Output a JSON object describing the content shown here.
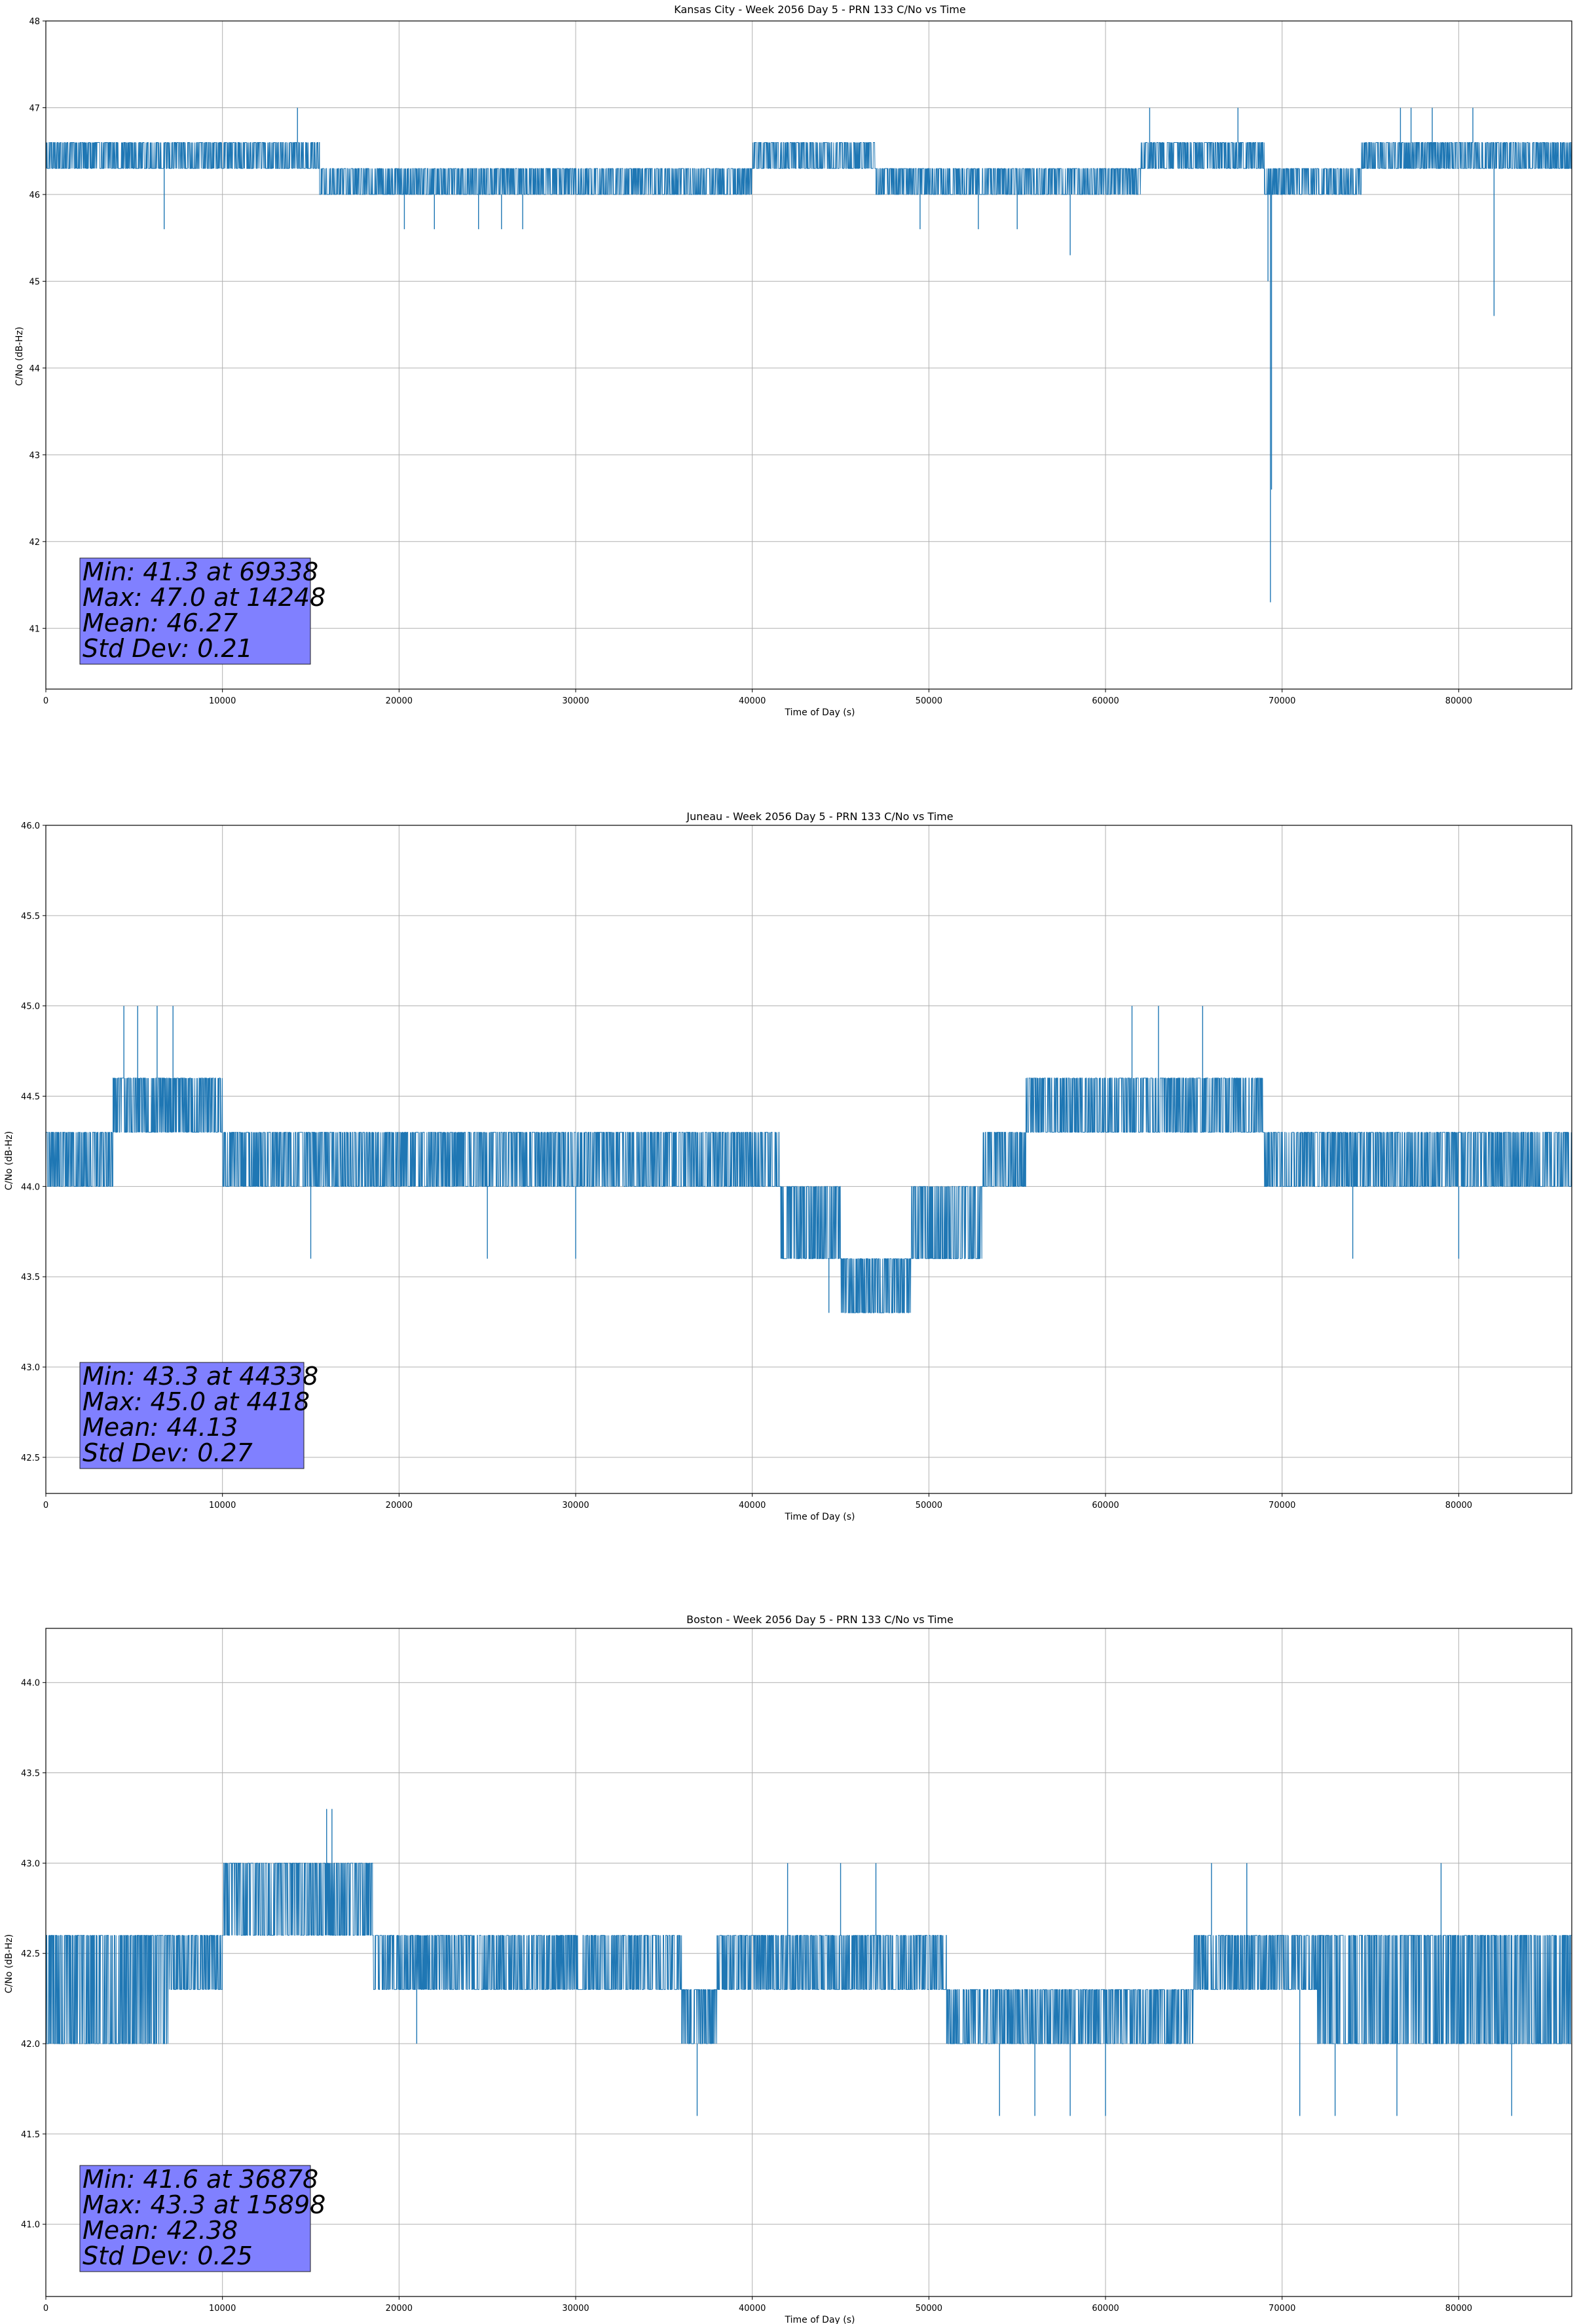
{
  "chart_data": [
    {
      "type": "line",
      "title": "Kansas City - Week 2056 Day 5 - PRN 133 C/No vs Time",
      "xlabel": "Time of Day (s)",
      "ylabel": "C/No (dB-Hz)",
      "xlim": [
        0,
        86400
      ],
      "ylim": [
        40.3,
        48.0
      ],
      "xticks": [
        0,
        10000,
        20000,
        30000,
        40000,
        50000,
        60000,
        70000,
        80000
      ],
      "yticks": [
        41,
        42,
        43,
        44,
        45,
        46,
        47,
        48
      ],
      "ytick_labels": [
        "41",
        "42",
        "43",
        "44",
        "45",
        "46",
        "47",
        "48"
      ],
      "grid": true,
      "color": "#1f77b4",
      "stats_box_color": "#8080ff",
      "segments": [
        {
          "start": 0,
          "end": 15500,
          "low": 46.3,
          "high": 46.6
        },
        {
          "start": 15500,
          "end": 23000,
          "low": 46.0,
          "high": 46.3
        },
        {
          "start": 23000,
          "end": 32000,
          "low": 46.0,
          "high": 46.3
        },
        {
          "start": 32000,
          "end": 40000,
          "low": 46.0,
          "high": 46.3
        },
        {
          "start": 40000,
          "end": 40500,
          "low": 46.3,
          "high": 46.6
        },
        {
          "start": 40500,
          "end": 47000,
          "low": 46.3,
          "high": 46.6
        },
        {
          "start": 47000,
          "end": 62000,
          "low": 46.0,
          "high": 46.3
        },
        {
          "start": 62000,
          "end": 69000,
          "low": 46.3,
          "high": 46.6
        },
        {
          "start": 69000,
          "end": 74500,
          "low": 46.0,
          "high": 46.3
        },
        {
          "start": 74500,
          "end": 86400,
          "low": 46.3,
          "high": 46.6
        }
      ],
      "spikes": [
        {
          "x": 6700,
          "y": 45.6
        },
        {
          "x": 14248,
          "y": 47.0
        },
        {
          "x": 20300,
          "y": 45.6
        },
        {
          "x": 22000,
          "y": 45.6
        },
        {
          "x": 24500,
          "y": 45.6
        },
        {
          "x": 25800,
          "y": 45.6
        },
        {
          "x": 27000,
          "y": 45.6
        },
        {
          "x": 49500,
          "y": 45.6
        },
        {
          "x": 52800,
          "y": 45.6
        },
        {
          "x": 55000,
          "y": 45.6
        },
        {
          "x": 58000,
          "y": 45.3
        },
        {
          "x": 62500,
          "y": 47.0
        },
        {
          "x": 67500,
          "y": 47.0
        },
        {
          "x": 69338,
          "y": 41.3
        },
        {
          "x": 69400,
          "y": 42.6
        },
        {
          "x": 69200,
          "y": 45.0
        },
        {
          "x": 76700,
          "y": 47.0
        },
        {
          "x": 77300,
          "y": 47.0
        },
        {
          "x": 78500,
          "y": 47.0
        },
        {
          "x": 80800,
          "y": 47.0
        },
        {
          "x": 82000,
          "y": 44.6
        }
      ],
      "stats": [
        "Min: 41.3 at 69338",
        "Max: 47.0 at 14248",
        "Mean: 46.27",
        "Std Dev: 0.21"
      ]
    },
    {
      "type": "line",
      "title": "Juneau - Week 2056 Day 5 - PRN 133 C/No vs Time",
      "xlabel": "Time of Day (s)",
      "ylabel": "C/No (dB-Hz)",
      "xlim": [
        0,
        86400
      ],
      "ylim": [
        42.3,
        46.0
      ],
      "xticks": [
        0,
        10000,
        20000,
        30000,
        40000,
        50000,
        60000,
        70000,
        80000
      ],
      "yticks": [
        42.5,
        43.0,
        43.5,
        44.0,
        44.5,
        45.0,
        45.5,
        46.0
      ],
      "ytick_labels": [
        "42.5",
        "43.0",
        "43.5",
        "44.0",
        "44.5",
        "45.0",
        "45.5",
        "46.0"
      ],
      "grid": true,
      "color": "#1f77b4",
      "stats_box_color": "#8080ff",
      "segments": [
        {
          "start": 0,
          "end": 3800,
          "low": 44.0,
          "high": 44.3
        },
        {
          "start": 3800,
          "end": 10000,
          "low": 44.3,
          "high": 44.6
        },
        {
          "start": 10000,
          "end": 41600,
          "low": 44.0,
          "high": 44.3
        },
        {
          "start": 41600,
          "end": 45000,
          "low": 43.6,
          "high": 44.0
        },
        {
          "start": 45000,
          "end": 49000,
          "low": 43.3,
          "high": 43.6
        },
        {
          "start": 49000,
          "end": 53000,
          "low": 43.6,
          "high": 44.0
        },
        {
          "start": 53000,
          "end": 55500,
          "low": 44.0,
          "high": 44.3
        },
        {
          "start": 55500,
          "end": 69000,
          "low": 44.3,
          "high": 44.6
        },
        {
          "start": 69000,
          "end": 86400,
          "low": 44.0,
          "high": 44.3
        }
      ],
      "spikes": [
        {
          "x": 4418,
          "y": 45.0
        },
        {
          "x": 5200,
          "y": 45.0
        },
        {
          "x": 6300,
          "y": 45.0
        },
        {
          "x": 7200,
          "y": 45.0
        },
        {
          "x": 44338,
          "y": 43.3
        },
        {
          "x": 61500,
          "y": 45.0
        },
        {
          "x": 63000,
          "y": 45.0
        },
        {
          "x": 65500,
          "y": 45.0
        },
        {
          "x": 15000,
          "y": 43.6
        },
        {
          "x": 25000,
          "y": 43.6
        },
        {
          "x": 30000,
          "y": 43.6
        },
        {
          "x": 74000,
          "y": 43.6
        },
        {
          "x": 80000,
          "y": 43.6
        }
      ],
      "stats": [
        "Min: 43.3 at 44338",
        "Max: 45.0 at 4418",
        "Mean: 44.13",
        "Std Dev: 0.27"
      ]
    },
    {
      "type": "line",
      "title": "Boston - Week 2056 Day 5 - PRN 133 C/No vs Time",
      "xlabel": "Time of Day (s)",
      "ylabel": "C/No (dB-Hz)",
      "xlim": [
        0,
        86400
      ],
      "ylim": [
        40.6,
        44.3
      ],
      "xticks": [
        0,
        10000,
        20000,
        30000,
        40000,
        50000,
        60000,
        70000,
        80000
      ],
      "yticks": [
        41.0,
        41.5,
        42.0,
        42.5,
        43.0,
        43.5,
        44.0
      ],
      "ytick_labels": [
        "41.0",
        "41.5",
        "42.0",
        "42.5",
        "43.0",
        "43.5",
        "44.0"
      ],
      "grid": true,
      "color": "#1f77b4",
      "stats_box_color": "#8080ff",
      "segments": [
        {
          "start": 0,
          "end": 7000,
          "low": 42.0,
          "high": 42.6
        },
        {
          "start": 7000,
          "end": 10000,
          "low": 42.3,
          "high": 42.6
        },
        {
          "start": 10000,
          "end": 18500,
          "low": 42.6,
          "high": 43.0
        },
        {
          "start": 18500,
          "end": 36000,
          "low": 42.3,
          "high": 42.6
        },
        {
          "start": 36000,
          "end": 38000,
          "low": 42.0,
          "high": 42.3
        },
        {
          "start": 38000,
          "end": 51000,
          "low": 42.3,
          "high": 42.6
        },
        {
          "start": 51000,
          "end": 65000,
          "low": 42.0,
          "high": 42.3
        },
        {
          "start": 65000,
          "end": 72000,
          "low": 42.3,
          "high": 42.6
        },
        {
          "start": 72000,
          "end": 86400,
          "low": 42.0,
          "high": 42.6
        }
      ],
      "spikes": [
        {
          "x": 15898,
          "y": 43.3
        },
        {
          "x": 16200,
          "y": 43.3
        },
        {
          "x": 36878,
          "y": 41.6
        },
        {
          "x": 21000,
          "y": 42.0
        },
        {
          "x": 42000,
          "y": 43.0
        },
        {
          "x": 45000,
          "y": 43.0
        },
        {
          "x": 47000,
          "y": 43.0
        },
        {
          "x": 54000,
          "y": 41.6
        },
        {
          "x": 56000,
          "y": 41.6
        },
        {
          "x": 58000,
          "y": 41.6
        },
        {
          "x": 60000,
          "y": 41.6
        },
        {
          "x": 66000,
          "y": 43.0
        },
        {
          "x": 68000,
          "y": 43.0
        },
        {
          "x": 71000,
          "y": 41.6
        },
        {
          "x": 73000,
          "y": 41.6
        },
        {
          "x": 76500,
          "y": 41.6
        },
        {
          "x": 79000,
          "y": 43.0
        },
        {
          "x": 83000,
          "y": 41.6
        }
      ],
      "stats": [
        "Min: 41.6 at 36878",
        "Max: 43.3 at 15898",
        "Mean: 42.38",
        "Std Dev: 0.25"
      ]
    }
  ]
}
